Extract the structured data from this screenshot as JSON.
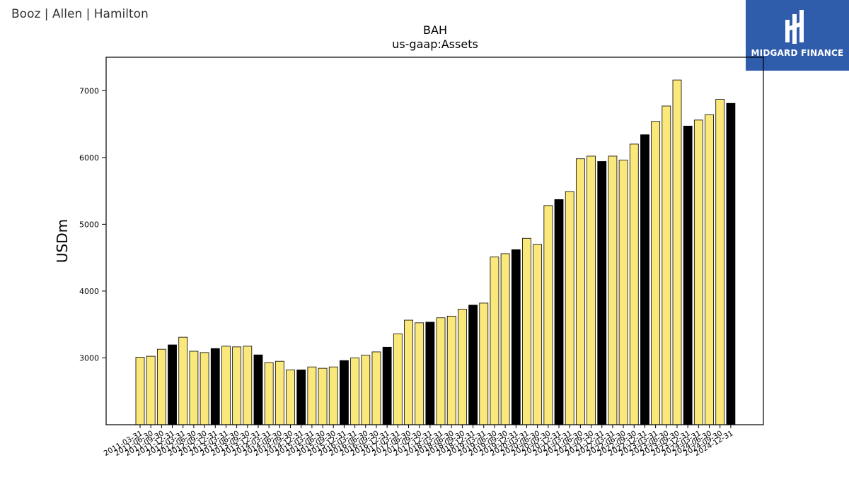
{
  "brand": {
    "left_text": "Booz | Allen | Hamilton",
    "logo_text": "MIDGARD FINANCE"
  },
  "colors": {
    "bar_fill": "#fbe87a",
    "highlight_fill": "#000000",
    "bar_edge": "#000000",
    "logo_bg": "#2f5cab"
  },
  "chart_data": {
    "type": "bar",
    "title": "BAH",
    "subtitle": "us-gaap:Assets",
    "ylabel": "USDm",
    "xlabel": "",
    "ylim": [
      2000,
      7500
    ],
    "yticks": [
      3000,
      4000,
      5000,
      6000,
      7000
    ],
    "grid": false,
    "categories": [
      "2011-03-31",
      "2011-06-30",
      "2011-09-30",
      "2011-12-31",
      "2012-03-31",
      "2012-06-30",
      "2012-09-30",
      "2012-12-31",
      "2013-03-31",
      "2013-06-30",
      "2013-09-30",
      "2013-12-31",
      "2014-03-31",
      "2014-06-30",
      "2014-09-30",
      "2014-12-31",
      "2015-03-31",
      "2015-06-30",
      "2015-09-30",
      "2015-12-31",
      "2016-03-31",
      "2016-06-30",
      "2016-09-30",
      "2016-12-31",
      "2017-03-31",
      "2017-06-30",
      "2017-09-30",
      "2017-12-31",
      "2018-03-31",
      "2018-06-30",
      "2018-09-30",
      "2018-12-31",
      "2019-03-31",
      "2019-06-30",
      "2019-09-30",
      "2019-12-31",
      "2020-03-31",
      "2020-06-30",
      "2020-09-30",
      "2020-12-31",
      "2021-03-31",
      "2021-06-30",
      "2021-09-30",
      "2021-12-31",
      "2022-03-31",
      "2022-06-30",
      "2022-09-30",
      "2022-12-31",
      "2023-03-31",
      "2023-06-30",
      "2023-09-30",
      "2023-12-31",
      "2024-03-31",
      "2024-06-30",
      "2024-09-30",
      "2024-12-31"
    ],
    "tick_labels": [
      "2011-03-31",
      "2011-06-30",
      "2011-09-30",
      "2011-12-31",
      "2012-03-31",
      "2012-06-30",
      "2012-09-30",
      "2012-12-31",
      "2013-03-31",
      "2013-06-30",
      "2013-09-30",
      "2013-12-31",
      "2014-03-31",
      "2014-06-30",
      "2014-09-30",
      "2014-12-31",
      "2015-03-31",
      "2015-06-30",
      "2015-09-30",
      "2015-12-31",
      "2016-03-31",
      "2016-06-30",
      "2016-09-30",
      "2016-12-31",
      "2017-03-31",
      "2017-06-30",
      "2017-09-30",
      "2017-12-31",
      "2018-03-31",
      "2018-06-30",
      "2018-09-30",
      "2018-12-31",
      "2019-03-31",
      "2019-06-30",
      "2019-09-30",
      "2019-12-31",
      "2020-03-31",
      "2020-06-30",
      "2020-09-30",
      "2020-12-31",
      "2021-03-31",
      "2021-06-30",
      "2021-09-30",
      "2021-12-31",
      "2022-03-31",
      "2022-06-30",
      "2022-09-30",
      "2022-12-31",
      "2023-03-31",
      "2023-06-30",
      "2023-09-30",
      "2023-12-31",
      "2024-03-31",
      "2024-06-30",
      "2024-09-30",
      "2024-12-31"
    ],
    "values": [
      3010,
      3025,
      3130,
      3195,
      3310,
      3100,
      3080,
      3140,
      3175,
      3165,
      3175,
      3045,
      2930,
      2950,
      2820,
      2820,
      2865,
      2845,
      2865,
      2960,
      3000,
      3040,
      3090,
      3160,
      3360,
      3565,
      3525,
      3535,
      3600,
      3625,
      3730,
      3790,
      3820,
      4510,
      4560,
      4620,
      4790,
      4700,
      5280,
      5370,
      5490,
      5980,
      6020,
      5940,
      6020,
      5960,
      6200,
      6340,
      6540,
      6770,
      7160,
      6470,
      6560,
      6640,
      6870,
      6810
    ],
    "highlight": [
      false,
      false,
      false,
      true,
      false,
      false,
      false,
      true,
      false,
      false,
      false,
      true,
      false,
      false,
      false,
      true,
      false,
      false,
      false,
      true,
      false,
      false,
      false,
      true,
      false,
      false,
      false,
      true,
      false,
      false,
      false,
      true,
      false,
      false,
      false,
      true,
      false,
      false,
      false,
      true,
      false,
      false,
      false,
      true,
      false,
      false,
      false,
      true,
      false,
      false,
      false,
      true,
      false,
      false,
      false,
      true
    ]
  }
}
